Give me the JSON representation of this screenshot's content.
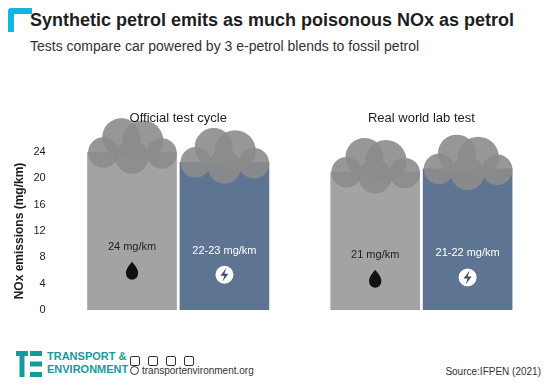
{
  "chart_data": {
    "type": "bar",
    "title": "Synthetic petrol emits as much poisonous NOx as petrol",
    "subtitle": "Tests compare car powered by 3 e-petrol blends to fossil petrol",
    "y_label": "NOx emissions (mg/km)",
    "categories": [
      "Official test cycle",
      "Real world lab test"
    ],
    "series": [
      {
        "name": "Fossil petrol",
        "color": "#a3a3a3",
        "values": [
          24,
          21
        ],
        "value_labels": [
          "24 mg/km",
          "21 mg/km"
        ]
      },
      {
        "name": "Synthetic petrol",
        "color": "#5d7592",
        "values": [
          22.5,
          21.5
        ],
        "value_labels": [
          "22-23 mg/km",
          "21-22 mg/km"
        ]
      }
    ],
    "ylim": [
      0,
      24
    ],
    "yticks": [
      0,
      4,
      8,
      12,
      16,
      20,
      24
    ],
    "grid": false,
    "data_labels": true,
    "tick_labels": "y",
    "footer": {
      "brand": [
        "TRANSPORT &",
        "ENVIRONMENT"
      ],
      "website": "transportenvironment.org",
      "source": "Source:IFPEN (2021)"
    }
  }
}
